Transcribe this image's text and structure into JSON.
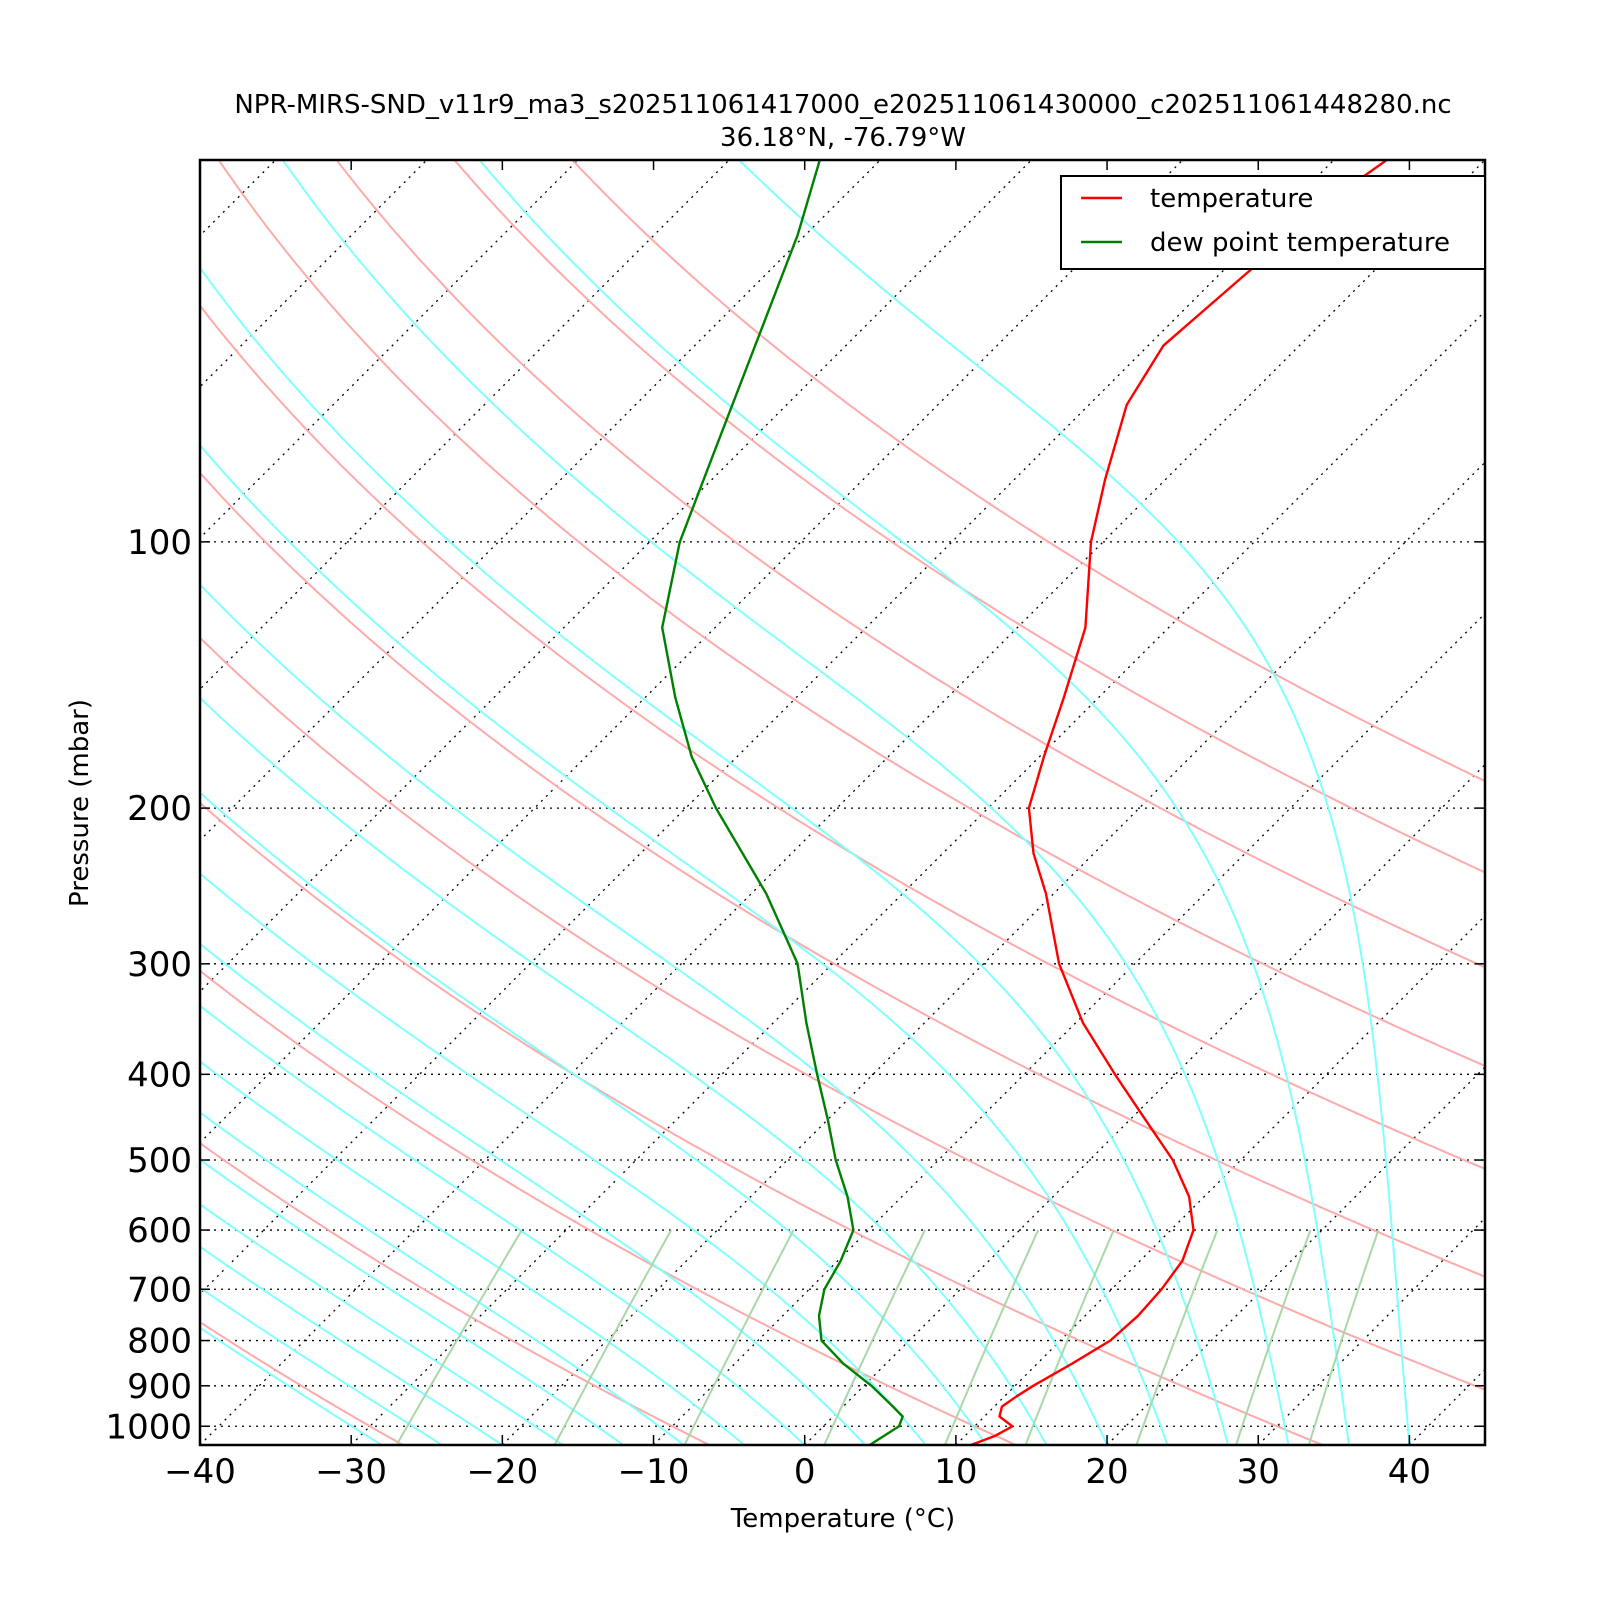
{
  "chart_data": {
    "type": "line",
    "chart_kind": "skew-T log-P sounding",
    "title": "NPR-MIRS-SND_v11r9_ma3_s202511061417000_e202511061430000_c202511061448280.nc",
    "subtitle": "36.18°N, -76.79°W",
    "xlabel": "Temperature (°C)",
    "ylabel": "Pressure (mbar)",
    "xlim": [
      -40,
      45
    ],
    "ylim": [
      1050,
      37
    ],
    "y_scale": "log",
    "skew": "isotherms slanted 45° to the upper right",
    "grid": true,
    "legend_position": "top-right",
    "x_ticks": [
      -40,
      -30,
      -20,
      -10,
      0,
      10,
      20,
      30,
      40
    ],
    "x_tick_labels": [
      "−40",
      "−30",
      "−20",
      "−10",
      "0",
      "10",
      "20",
      "30",
      "40"
    ],
    "y_ticks": [
      100,
      200,
      300,
      400,
      500,
      600,
      700,
      800,
      900,
      1000
    ],
    "y_tick_labels": [
      "100",
      "200",
      "300",
      "400",
      "500",
      "600",
      "700",
      "800",
      "900",
      "1000"
    ],
    "colors": {
      "temperature": "#ff0000",
      "dewpoint": "#008000",
      "dry_adiabats": "#ffaaaa",
      "moist_adiabats": "#80ffff",
      "mixing_ratio_lines": "#a8d8a8",
      "isotherms": "#000000"
    },
    "series": [
      {
        "name": "temperature",
        "color": "#ff0000",
        "points": [
          {
            "p": 1050,
            "t": 11.0
          },
          {
            "p": 1025,
            "t": 12.0
          },
          {
            "p": 1000,
            "t": 12.5
          },
          {
            "p": 975,
            "t": 11.0
          },
          {
            "p": 950,
            "t": 10.5
          },
          {
            "p": 925,
            "t": 10.8
          },
          {
            "p": 900,
            "t": 11.2
          },
          {
            "p": 850,
            "t": 12.3
          },
          {
            "p": 800,
            "t": 13.3
          },
          {
            "p": 750,
            "t": 13.5
          },
          {
            "p": 700,
            "t": 13.3
          },
          {
            "p": 650,
            "t": 12.8
          },
          {
            "p": 600,
            "t": 11.5
          },
          {
            "p": 550,
            "t": 9.0
          },
          {
            "p": 500,
            "t": 5.5
          },
          {
            "p": 450,
            "t": 1.0
          },
          {
            "p": 400,
            "t": -4.0
          },
          {
            "p": 350,
            "t": -9.5
          },
          {
            "p": 300,
            "t": -15.0
          },
          {
            "p": 250,
            "t": -20.5
          },
          {
            "p": 225,
            "t": -24.0
          },
          {
            "p": 200,
            "t": -27.3
          },
          {
            "p": 175,
            "t": -29.7
          },
          {
            "p": 150,
            "t": -32.3
          },
          {
            "p": 125,
            "t": -35.5
          },
          {
            "p": 100,
            "t": -40.8
          },
          {
            "p": 85,
            "t": -44.0
          },
          {
            "p": 70,
            "t": -47.5
          },
          {
            "p": 60,
            "t": -49.0
          },
          {
            "p": 50,
            "t": -48.3
          },
          {
            "p": 40,
            "t": -47.3
          },
          {
            "p": 37,
            "t": -46.5
          }
        ]
      },
      {
        "name": "dew point temperature",
        "color": "#008000",
        "points": [
          {
            "p": 1050,
            "t": 4.3
          },
          {
            "p": 1000,
            "t": 5.0
          },
          {
            "p": 975,
            "t": 4.6
          },
          {
            "p": 950,
            "t": 3.3
          },
          {
            "p": 900,
            "t": 0.5
          },
          {
            "p": 850,
            "t": -2.8
          },
          {
            "p": 800,
            "t": -5.8
          },
          {
            "p": 750,
            "t": -7.6
          },
          {
            "p": 700,
            "t": -9.0
          },
          {
            "p": 650,
            "t": -9.8
          },
          {
            "p": 600,
            "t": -11.0
          },
          {
            "p": 550,
            "t": -13.6
          },
          {
            "p": 500,
            "t": -16.8
          },
          {
            "p": 450,
            "t": -20.0
          },
          {
            "p": 400,
            "t": -23.7
          },
          {
            "p": 350,
            "t": -27.8
          },
          {
            "p": 300,
            "t": -32.3
          },
          {
            "p": 250,
            "t": -39.0
          },
          {
            "p": 200,
            "t": -48.0
          },
          {
            "p": 175,
            "t": -53.0
          },
          {
            "p": 150,
            "t": -58.0
          },
          {
            "p": 125,
            "t": -63.5
          },
          {
            "p": 100,
            "t": -68.0
          },
          {
            "p": 80,
            "t": -71.5
          },
          {
            "p": 60,
            "t": -76.0
          },
          {
            "p": 45,
            "t": -80.5
          },
          {
            "p": 37,
            "t": -84.0
          }
        ]
      }
    ]
  }
}
